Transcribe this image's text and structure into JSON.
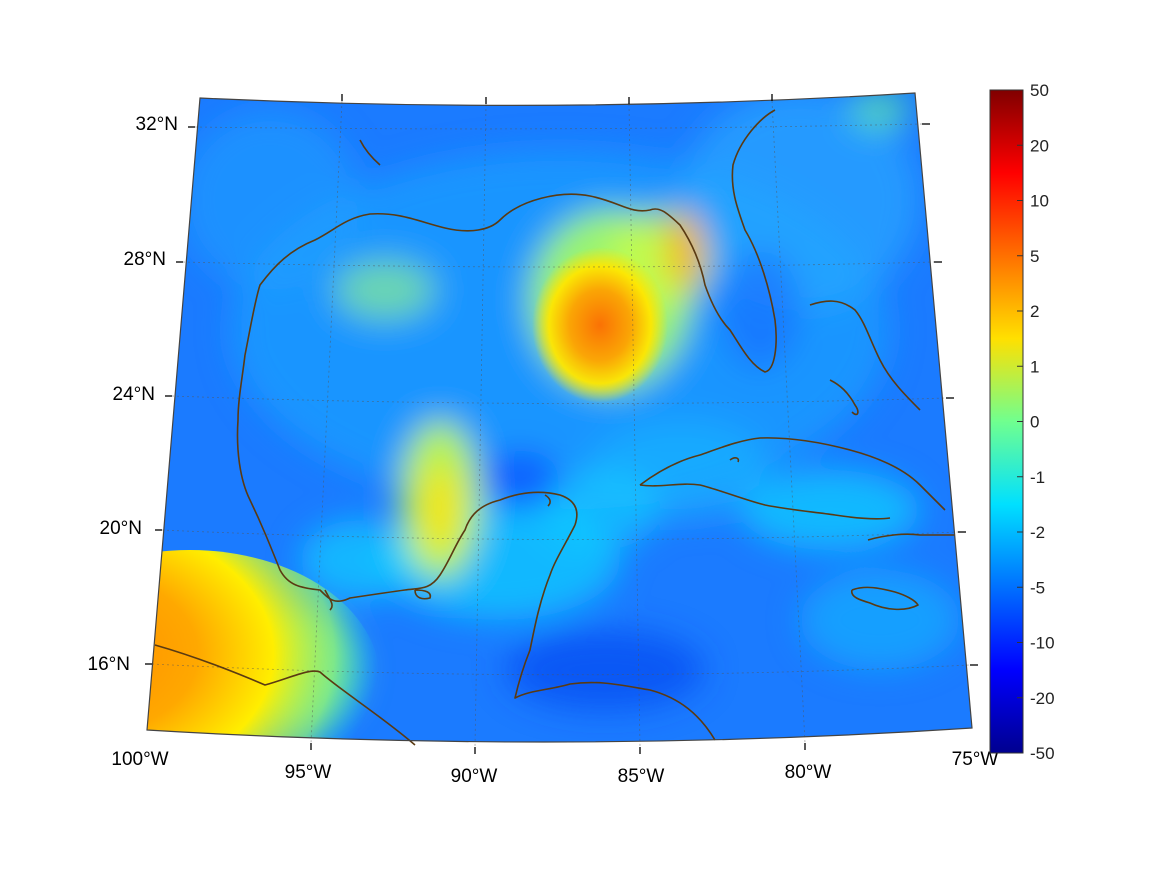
{
  "map": {
    "type": "heatmap",
    "region": "Gulf of Mexico and Caribbean",
    "projection": "conic",
    "longitude_range": [
      -100,
      -75
    ],
    "latitude_range": [
      14.5,
      32.5
    ],
    "grid": true,
    "coastline_color": "#5a3a12",
    "lon_ticks": [
      {
        "value": -100,
        "label": "100°W"
      },
      {
        "value": -95,
        "label": "95°W"
      },
      {
        "value": -90,
        "label": "90°W"
      },
      {
        "value": -85,
        "label": "85°W"
      },
      {
        "value": -80,
        "label": "80°W"
      },
      {
        "value": -75,
        "label": "75°W"
      }
    ],
    "lat_ticks": [
      {
        "value": 32,
        "label": "32°N"
      },
      {
        "value": 28,
        "label": "28°N"
      },
      {
        "value": 24,
        "label": "24°N"
      },
      {
        "value": 20,
        "label": "20°N"
      },
      {
        "value": 16,
        "label": "16°N"
      }
    ]
  },
  "colorbar": {
    "colormap": "jet",
    "ticks": [
      "50",
      "20",
      "10",
      "5",
      "2",
      "1",
      "0",
      "-1",
      "-2",
      "-5",
      "-10",
      "-20",
      "-50"
    ],
    "colors": [
      "#00008f",
      "#0000ff",
      "#0070ff",
      "#00e0ff",
      "#70ff8f",
      "#ffe000",
      "#ff7000",
      "#ff0000",
      "#800000"
    ]
  }
}
